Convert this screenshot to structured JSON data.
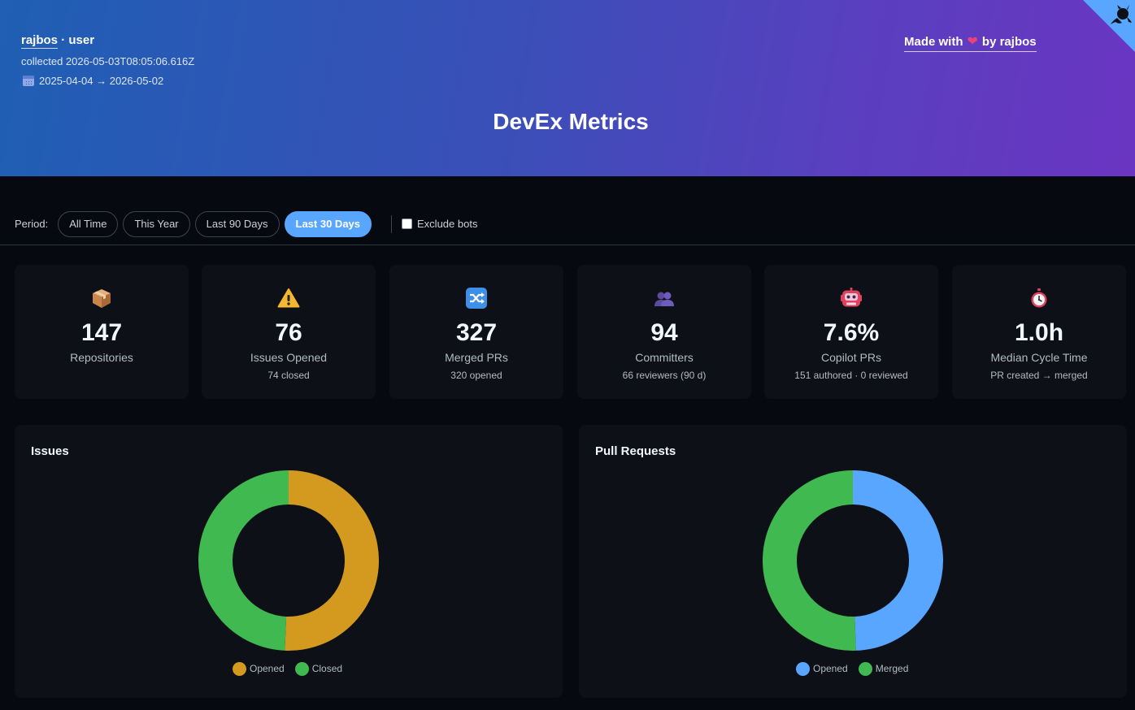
{
  "header": {
    "owner": "rajbos",
    "owner_type": "· user",
    "collected": "collected 2026-05-03T08:05:06.616Z",
    "date_range": "2025-04-04 → 2026-05-02",
    "made_with_prefix": "Made with",
    "made_with_suffix": "by rajbos",
    "title": "DevEx Metrics"
  },
  "period": {
    "label": "Period:",
    "options": [
      "All Time",
      "This Year",
      "Last 90 Days",
      "Last 30 Days"
    ],
    "selected": "Last 30 Days",
    "exclude_bots_label": "Exclude bots",
    "exclude_bots_checked": false
  },
  "metrics": [
    {
      "icon": "package-icon",
      "value": "147",
      "label": "Repositories",
      "sub": ""
    },
    {
      "icon": "warning-icon",
      "value": "76",
      "label": "Issues Opened",
      "sub": "74 closed"
    },
    {
      "icon": "shuffle-icon",
      "value": "327",
      "label": "Merged PRs",
      "sub": "320 opened"
    },
    {
      "icon": "people-icon",
      "value": "94",
      "label": "Committers",
      "sub": "66 reviewers (90 d)"
    },
    {
      "icon": "robot-icon",
      "value": "7.6%",
      "label": "Copilot PRs",
      "sub": "151 authored · 0 reviewed"
    },
    {
      "icon": "stopwatch-icon",
      "value": "1.0h",
      "label": "Median Cycle Time",
      "sub": "PR created → merged"
    }
  ],
  "colors": {
    "opened_issues": "#d4991f",
    "closed": "#3fb950",
    "opened_prs": "#58a6ff",
    "merged": "#3fb950",
    "accent": "#58a6ff"
  },
  "chart_data": [
    {
      "type": "pie",
      "title": "Issues",
      "categories": [
        "Opened",
        "Closed"
      ],
      "values": [
        76,
        74
      ]
    },
    {
      "type": "pie",
      "title": "Pull Requests",
      "categories": [
        "Opened",
        "Merged"
      ],
      "values": [
        320,
        327
      ]
    }
  ]
}
